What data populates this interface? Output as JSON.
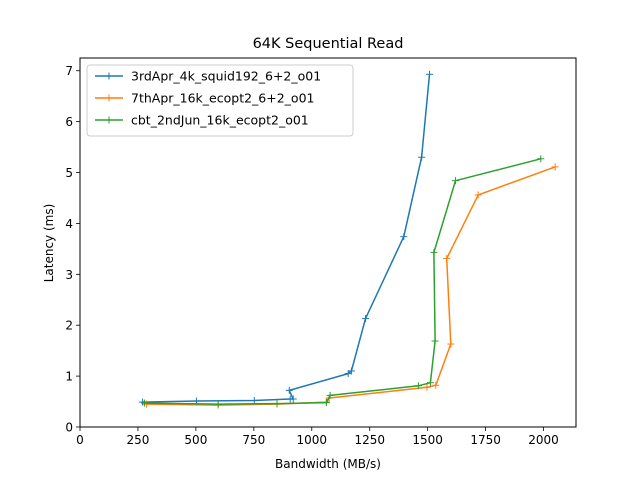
{
  "chart_data": {
    "type": "line",
    "title": "64K  Sequential Read",
    "xlabel": "Bandwidth (MB/s)",
    "ylabel": "Latency (ms)",
    "xlim": [
      0,
      2140
    ],
    "ylim": [
      0,
      7.25
    ],
    "xticks": [
      0,
      250,
      500,
      750,
      1000,
      1250,
      1500,
      1750,
      2000
    ],
    "yticks": [
      0,
      1,
      2,
      3,
      4,
      5,
      6,
      7
    ],
    "legend_position": "upper-left",
    "grid": false,
    "series": [
      {
        "name": "3rdApr_4k_squid192_6+2_o01",
        "color": "#1f77b4",
        "marker": "+",
        "points": [
          [
            270,
            0.49
          ],
          [
            503,
            0.51
          ],
          [
            752,
            0.52
          ],
          [
            907,
            0.55
          ],
          [
            920,
            0.55
          ],
          [
            903,
            0.72
          ],
          [
            1157,
            1.05
          ],
          [
            1171,
            1.1
          ],
          [
            1232,
            2.13
          ],
          [
            1397,
            3.74
          ],
          [
            1474,
            5.3
          ],
          [
            1508,
            6.93
          ]
        ]
      },
      {
        "name": "7thApr_16k_ecopt2_6+2_o01",
        "color": "#ff7f0e",
        "marker": "+",
        "points": [
          [
            287,
            0.45
          ],
          [
            596,
            0.43
          ],
          [
            850,
            0.45
          ],
          [
            1063,
            0.49
          ],
          [
            1075,
            0.57
          ],
          [
            1497,
            0.78
          ],
          [
            1535,
            0.82
          ],
          [
            1600,
            1.63
          ],
          [
            1582,
            3.31
          ],
          [
            1718,
            4.56
          ],
          [
            2050,
            5.11
          ]
        ]
      },
      {
        "name": "cbt_2ndJun_16k_ecopt2_o01",
        "color": "#2ca02c",
        "marker": "+",
        "points": [
          [
            278,
            0.47
          ],
          [
            596,
            0.45
          ],
          [
            850,
            0.46
          ],
          [
            1063,
            0.48
          ],
          [
            1079,
            0.62
          ],
          [
            1460,
            0.81
          ],
          [
            1512,
            0.87
          ],
          [
            1532,
            1.69
          ],
          [
            1527,
            3.43
          ],
          [
            1620,
            4.84
          ],
          [
            1988,
            5.27
          ]
        ]
      }
    ]
  }
}
